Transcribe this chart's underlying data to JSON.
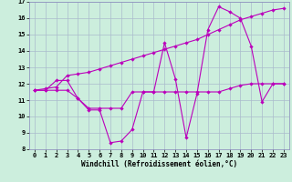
{
  "xlabel": "Windchill (Refroidissement éolien,°C)",
  "background_color": "#cceedd",
  "grid_color": "#aabbcc",
  "line_color": "#bb00bb",
  "x": [
    0,
    1,
    2,
    3,
    4,
    5,
    6,
    7,
    8,
    9,
    10,
    11,
    12,
    13,
    14,
    15,
    16,
    17,
    18,
    19,
    20,
    21,
    22,
    23
  ],
  "line1": [
    11.6,
    11.6,
    12.2,
    12.2,
    11.1,
    10.4,
    10.4,
    8.4,
    8.5,
    9.2,
    11.5,
    11.5,
    14.5,
    12.3,
    8.7,
    11.4,
    15.3,
    16.7,
    16.4,
    16.0,
    14.3,
    10.9,
    12.0,
    12.0
  ],
  "line2": [
    11.6,
    11.7,
    11.8,
    12.5,
    12.6,
    12.7,
    12.9,
    13.1,
    13.3,
    13.5,
    13.7,
    13.9,
    14.1,
    14.3,
    14.5,
    14.7,
    15.0,
    15.3,
    15.6,
    15.9,
    16.1,
    16.3,
    16.5,
    16.6
  ],
  "line3": [
    11.6,
    11.6,
    11.6,
    11.6,
    11.1,
    10.5,
    10.5,
    10.5,
    10.5,
    11.5,
    11.5,
    11.5,
    11.5,
    11.5,
    11.5,
    11.5,
    11.5,
    11.5,
    11.7,
    11.9,
    12.0,
    12.0,
    12.0,
    12.0
  ],
  "ylim": [
    8,
    17
  ],
  "xlim": [
    -0.5,
    23.5
  ],
  "yticks": [
    8,
    9,
    10,
    11,
    12,
    13,
    14,
    15,
    16,
    17
  ],
  "xticks": [
    0,
    1,
    2,
    3,
    4,
    5,
    6,
    7,
    8,
    9,
    10,
    11,
    12,
    13,
    14,
    15,
    16,
    17,
    18,
    19,
    20,
    21,
    22,
    23
  ]
}
